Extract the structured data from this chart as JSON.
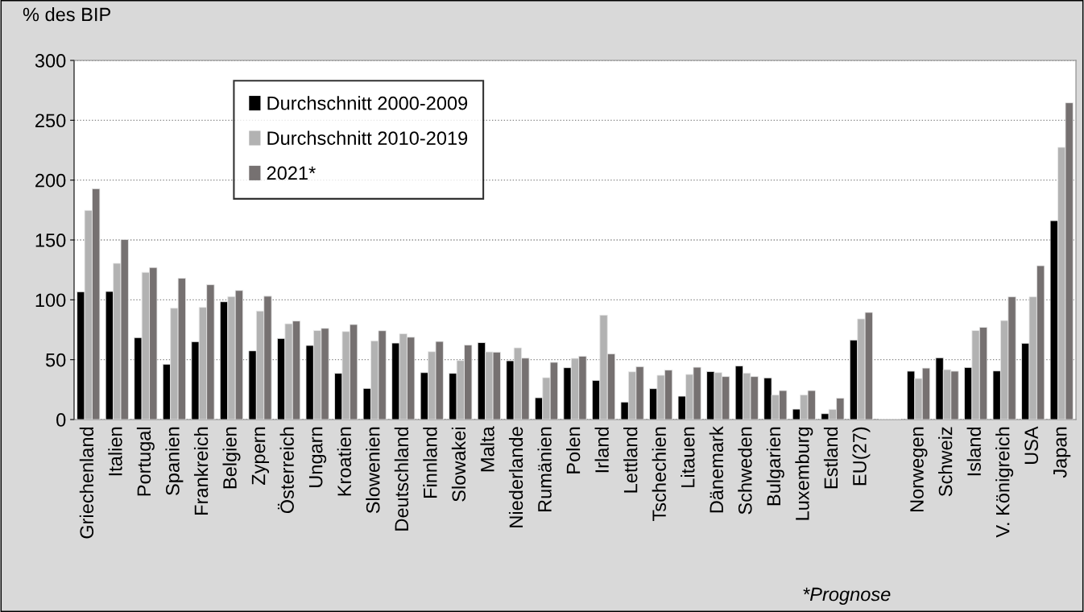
{
  "chart_data": {
    "type": "bar",
    "ylabel": "% des BIP",
    "categories": [
      "Griechenland",
      "Italien",
      "Portugal",
      "Spanien",
      "Frankreich",
      "Belgien",
      "Zypern",
      "Österreich",
      "Ungarn",
      "Kroatien",
      "Slowenien",
      "Deutschland",
      "Finnland",
      "Slowakei",
      "Malta",
      "Niederlande",
      "Rumänien",
      "Polen",
      "Irland",
      "Lettland",
      "Tschechien",
      "Litauen",
      "Dänemark",
      "Schweden",
      "Bulgarien",
      "Luxemburg",
      "Estland",
      "EU(27)",
      null,
      "Norwegen",
      "Schweiz",
      "Island",
      "V. Königreich",
      "USA",
      "Japan"
    ],
    "series": [
      {
        "name": "Durchschnitt 2000-2009",
        "color": "#000000",
        "values": [
          106.7,
          107,
          68.4,
          46.2,
          65,
          98.4,
          57.4,
          67.7,
          61.9,
          38.6,
          26,
          63.9,
          39.2,
          38.6,
          64.3,
          49.1,
          18.2,
          43.3,
          32.7,
          14.6,
          25.8,
          19.5,
          40.1,
          44.8,
          34.8,
          8.7,
          4.9,
          66.4,
          null,
          40.4,
          51.6,
          43.5,
          40.6,
          63.7,
          166.1
        ]
      },
      {
        "name": "Durchschnitt 2010-2019",
        "color": "#b2b2b2",
        "values": [
          174.7,
          130.5,
          123,
          93,
          93.7,
          102.7,
          90.6,
          80,
          74.4,
          73.5,
          65.7,
          71.7,
          56.7,
          49.3,
          56.5,
          59.9,
          35,
          51.1,
          87.2,
          39.9,
          37,
          37.7,
          39.2,
          38.8,
          20.6,
          20.6,
          8.5,
          84.1,
          null,
          34.3,
          41.7,
          74.4,
          82.7,
          102.5,
          227.4
        ]
      },
      {
        "name": "2021*",
        "color": "#767171",
        "values": [
          192.8,
          150.4,
          127,
          118,
          112.6,
          107.8,
          103,
          82.3,
          76.2,
          79.4,
          74.2,
          68.8,
          65.2,
          62.3,
          56.3,
          51.3,
          47.8,
          52.9,
          54.9,
          44.2,
          41.3,
          43.7,
          35.9,
          35.9,
          24.2,
          24.2,
          17.9,
          89.5,
          null,
          43,
          40.4,
          77.1,
          102.5,
          128.5,
          264.6
        ]
      }
    ],
    "ylim": [
      0,
      300
    ],
    "yticks": [
      0,
      50,
      100,
      150,
      200,
      250,
      300
    ],
    "grid": "y",
    "legend": "top left",
    "annotations": [
      "*Prognose"
    ]
  }
}
